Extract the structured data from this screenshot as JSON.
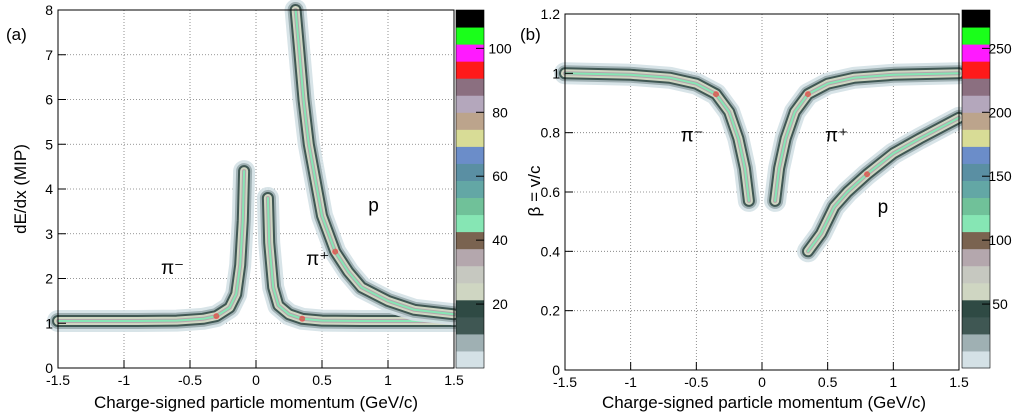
{
  "chart_data": [
    {
      "panel_label": "(a)",
      "type": "heatmap",
      "xlabel": "Charge-signed particle momentum (GeV/c)",
      "ylabel": "dE/dx (MIP)",
      "xlim": [
        -1.5,
        1.5
      ],
      "ylim": [
        0,
        8
      ],
      "x_ticks": [
        -1.5,
        -1,
        -0.5,
        0,
        0.5,
        1,
        1.5
      ],
      "x_tick_labels": [
        "-1.5",
        "-1",
        "-0.5",
        "0",
        "0.5",
        "1",
        "1.5"
      ],
      "y_ticks": [
        0,
        1,
        2,
        3,
        4,
        5,
        6,
        7,
        8
      ],
      "y_tick_labels": [
        "0",
        "1",
        "2",
        "3",
        "4",
        "5",
        "6",
        "7",
        "8"
      ],
      "grid": true,
      "bands": [
        {
          "label": "π⁻",
          "label_at": [
            -0.72,
            2.1
          ],
          "points": [
            [
              -1.5,
              1.05
            ],
            [
              -1.2,
              1.05
            ],
            [
              -0.9,
              1.05
            ],
            [
              -0.6,
              1.06
            ],
            [
              -0.4,
              1.1
            ],
            [
              -0.3,
              1.16
            ],
            [
              -0.2,
              1.35
            ],
            [
              -0.15,
              1.65
            ],
            [
              -0.12,
              2.3
            ],
            [
              -0.1,
              3.3
            ],
            [
              -0.09,
              4.4
            ]
          ]
        },
        {
          "label": "π⁺",
          "label_at": [
            0.38,
            2.3
          ],
          "points": [
            [
              0.09,
              3.8
            ],
            [
              0.1,
              2.8
            ],
            [
              0.13,
              1.8
            ],
            [
              0.17,
              1.4
            ],
            [
              0.25,
              1.2
            ],
            [
              0.35,
              1.1
            ],
            [
              0.5,
              1.06
            ],
            [
              0.8,
              1.05
            ],
            [
              1.1,
              1.05
            ],
            [
              1.5,
              1.05
            ]
          ]
        },
        {
          "label": "p",
          "label_at": [
            0.85,
            3.5
          ],
          "points": [
            [
              0.3,
              8
            ],
            [
              0.33,
              7
            ],
            [
              0.36,
              6
            ],
            [
              0.4,
              5
            ],
            [
              0.45,
              4.2
            ],
            [
              0.5,
              3.4
            ],
            [
              0.6,
              2.6
            ],
            [
              0.7,
              2.15
            ],
            [
              0.8,
              1.8
            ],
            [
              1.0,
              1.5
            ],
            [
              1.2,
              1.3
            ],
            [
              1.5,
              1.2
            ]
          ]
        }
      ],
      "colorbar": {
        "ticks": [
          20,
          40,
          60,
          80,
          100
        ],
        "tick_labels": [
          "20",
          "40",
          "60",
          "80",
          "100"
        ],
        "max": 112
      }
    },
    {
      "panel_label": "(b)",
      "type": "heatmap",
      "xlabel": "Charge-signed particle momentum (GeV/c)",
      "ylabel": "β = v/c",
      "xlim": [
        -1.5,
        1.5
      ],
      "ylim": [
        0,
        1.2
      ],
      "x_ticks": [
        -1.5,
        -1,
        -0.5,
        0,
        0.5,
        1,
        1.5
      ],
      "x_tick_labels": [
        "-1.5",
        "-1",
        "-0.5",
        "0",
        "0.5",
        "1",
        "1.5"
      ],
      "y_ticks": [
        0,
        0.2,
        0.4,
        0.6,
        0.8,
        1,
        1.2
      ],
      "y_tick_labels": [
        "0",
        "0.2",
        "0.4",
        "0.6",
        "0.8",
        "1",
        "1.2"
      ],
      "grid": true,
      "bands": [
        {
          "label": "π⁻",
          "label_at": [
            -0.62,
            0.77
          ],
          "points": [
            [
              -1.5,
              1.0
            ],
            [
              -1.0,
              0.995
            ],
            [
              -0.7,
              0.985
            ],
            [
              -0.5,
              0.965
            ],
            [
              -0.35,
              0.93
            ],
            [
              -0.25,
              0.87
            ],
            [
              -0.18,
              0.78
            ],
            [
              -0.13,
              0.68
            ],
            [
              -0.1,
              0.57
            ]
          ]
        },
        {
          "label": "π⁺",
          "label_at": [
            0.48,
            0.77
          ],
          "points": [
            [
              0.1,
              0.57
            ],
            [
              0.13,
              0.68
            ],
            [
              0.18,
              0.78
            ],
            [
              0.25,
              0.87
            ],
            [
              0.35,
              0.93
            ],
            [
              0.5,
              0.965
            ],
            [
              0.7,
              0.985
            ],
            [
              1.0,
              0.995
            ],
            [
              1.5,
              1.0
            ]
          ]
        },
        {
          "label": "p",
          "label_at": [
            0.88,
            0.53
          ],
          "points": [
            [
              0.35,
              0.4
            ],
            [
              0.45,
              0.46
            ],
            [
              0.55,
              0.55
            ],
            [
              0.65,
              0.6
            ],
            [
              0.8,
              0.66
            ],
            [
              1.0,
              0.73
            ],
            [
              1.2,
              0.78
            ],
            [
              1.5,
              0.85
            ]
          ]
        }
      ],
      "colorbar": {
        "ticks": [
          50,
          100,
          150,
          200,
          250
        ],
        "tick_labels": [
          "50",
          "100",
          "150",
          "200",
          "250"
        ],
        "max": 280
      }
    }
  ],
  "palette": [
    "#d4e1e6",
    "#9fb0b3",
    "#3f5753",
    "#2f4a44",
    "#cfd6c2",
    "#c6c8c0",
    "#b4a7ad",
    "#7a6350",
    "#86e6b4",
    "#70c199",
    "#63a7a5",
    "#5a8fa3",
    "#6b8dc9",
    "#d8dc96",
    "#bca48c",
    "#b4a7bc",
    "#8b6f80",
    "#ff1a1a",
    "#ff1aff",
    "#1aff1a",
    "#000000"
  ]
}
